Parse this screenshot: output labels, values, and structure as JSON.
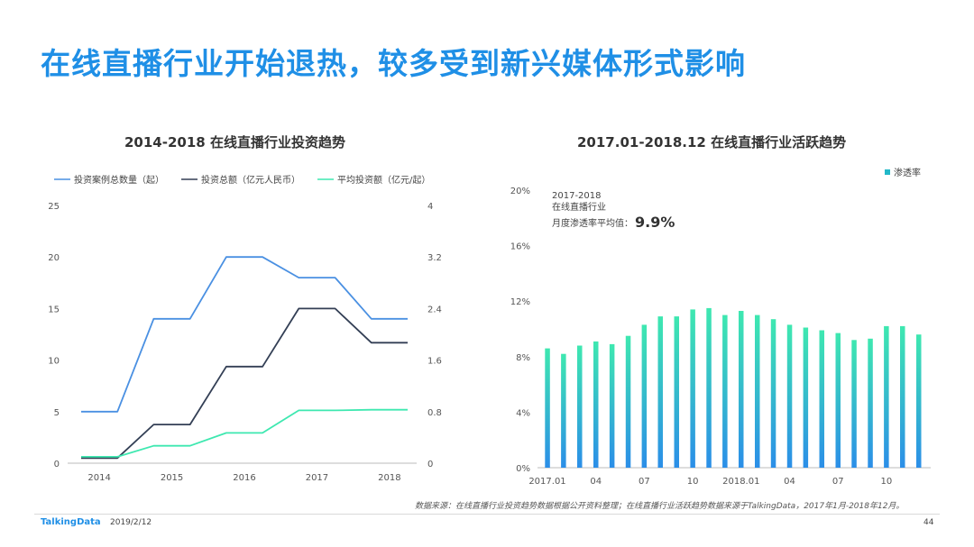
{
  "page": {
    "title": "在线直播行业开始退热，较多受到新兴媒体形式影响",
    "source_note": "数据来源：在线直播行业投资趋势数据根据公开资料整理；在线直播行业活跃趋势数据来源于TalkingData，2017年1月-2018年12月。",
    "brand": "TalkingData",
    "date": "2019/2/12",
    "page_number": "44"
  },
  "colors": {
    "title": "#1f8fe6",
    "cases": "#4a90e2",
    "total": "#333f55",
    "avg": "#3ee8b0",
    "bar_top": "#3ee8b0",
    "bar_bottom": "#2b8ee8",
    "legend_square": "#22b8c8"
  },
  "chart_data": [
    {
      "type": "line",
      "title": "2014-2018  在线直播行业投资趋势",
      "x_tick_labels": [
        "2014",
        "2015",
        "2016",
        "2017",
        "2018"
      ],
      "half_year_points": 10,
      "y_left": {
        "ticks": [
          "0",
          "5",
          "10",
          "15",
          "20",
          "25"
        ],
        "range": [
          0,
          25
        ]
      },
      "y_right": {
        "ticks": [
          "0",
          "0.8",
          "1.6",
          "2.4",
          "3.2",
          "4"
        ],
        "range": [
          0,
          4
        ]
      },
      "series": [
        {
          "name": "投资案例总数量（起）",
          "axis": "left",
          "color_key": "cases",
          "values": [
            5,
            5,
            14,
            14,
            20,
            20,
            18,
            18,
            14,
            14
          ]
        },
        {
          "name": "投资总额（亿元人民币）",
          "axis": "right",
          "color_key": "total",
          "values": [
            0.08,
            0.08,
            0.6,
            0.6,
            1.5,
            1.5,
            2.4,
            2.4,
            1.87,
            1.87
          ]
        },
        {
          "name": "平均投资额（亿元/起）",
          "axis": "right",
          "color_key": "avg",
          "values": [
            0.1,
            0.1,
            0.27,
            0.27,
            0.47,
            0.47,
            0.82,
            0.82,
            0.83,
            0.83
          ]
        }
      ]
    },
    {
      "type": "bar",
      "title": "2017.01-2018.12  在线直播行业活跃趋势",
      "legend": "渗透率",
      "annotation": {
        "line1": "2017-2018",
        "line2": "在线直播行业",
        "line3": "月度渗透率平均值：",
        "value": "9.9%"
      },
      "y_ticks": [
        "0%",
        "4%",
        "8%",
        "12%",
        "16%",
        "20%"
      ],
      "ylim": [
        0,
        20
      ],
      "x_tick_labels": [
        "2017.01",
        "04",
        "07",
        "10",
        "2018.01",
        "04",
        "07",
        "10"
      ],
      "values": [
        8.6,
        8.2,
        8.8,
        9.1,
        8.9,
        9.5,
        10.3,
        10.9,
        10.9,
        11.4,
        11.5,
        11.0,
        11.3,
        11.0,
        10.7,
        10.3,
        10.1,
        9.9,
        9.7,
        9.2,
        9.3,
        10.2,
        10.2,
        9.6
      ]
    }
  ]
}
